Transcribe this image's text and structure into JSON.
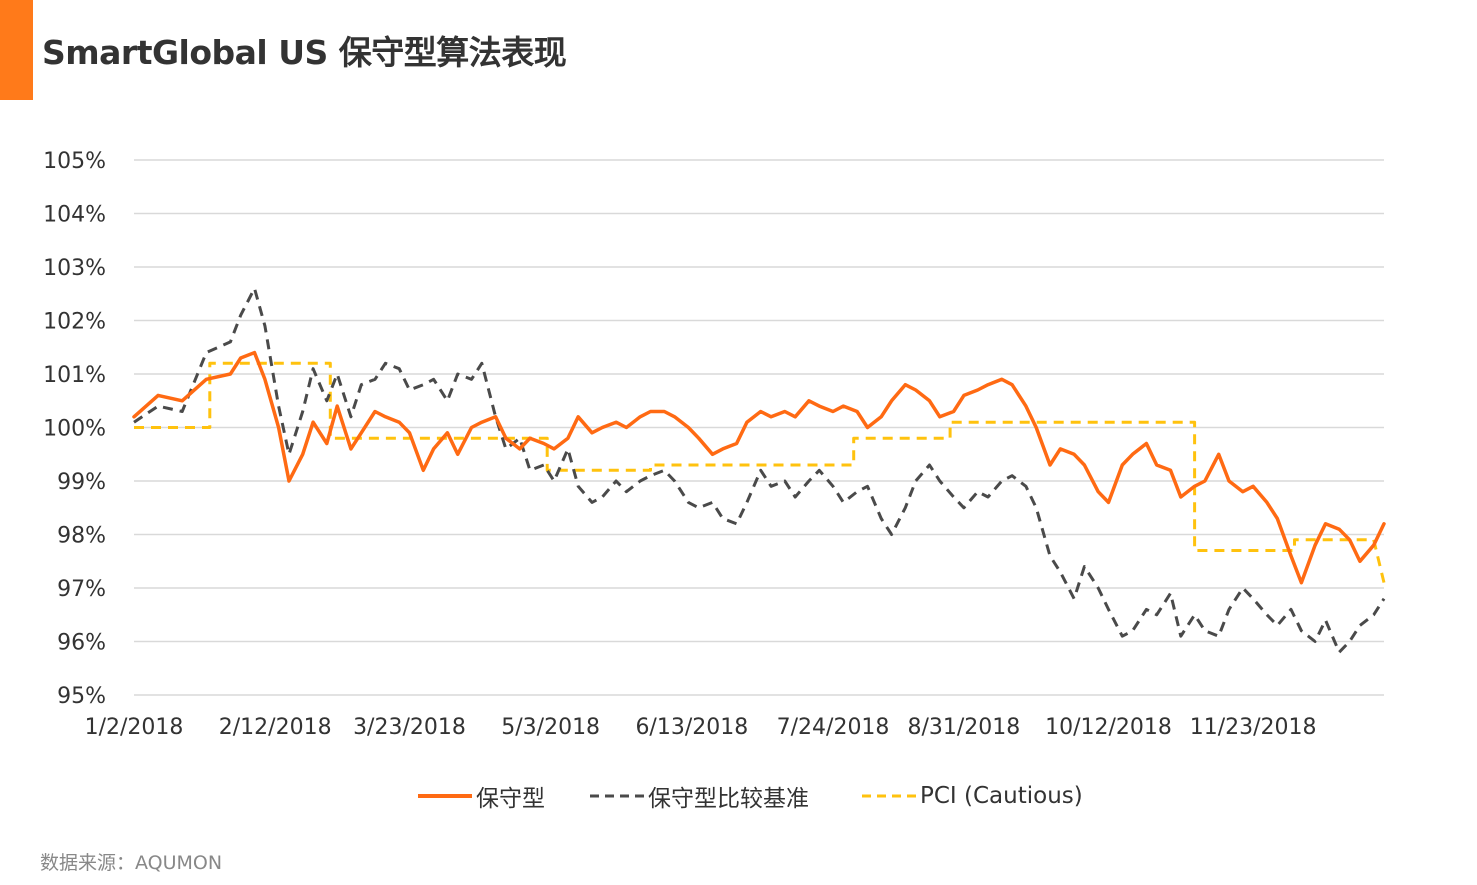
{
  "title": "SmartGlobal US 保守型算法表现",
  "source": "数据来源：AQUMON",
  "colors": {
    "accent": "#ff7a1a",
    "portfolio": "#ff6a13",
    "benchmark": "#4a4a4a",
    "pci": "#ffc20e",
    "grid": "#d9d9d9",
    "text": "#333333",
    "source_text": "#888888"
  },
  "chart_data": {
    "type": "line",
    "title": "",
    "xlabel": "",
    "ylabel": "",
    "ylim": [
      95,
      105
    ],
    "yticks": [
      "105%",
      "104%",
      "103%",
      "102%",
      "101%",
      "100%",
      "99%",
      "98%",
      "97%",
      "96%",
      "95%"
    ],
    "xticks": [
      "1/2/2018",
      "2/12/2018",
      "3/23/2018",
      "5/3/2018",
      "6/13/2018",
      "7/24/2018",
      "8/31/2018",
      "10/12/2018",
      "11/23/2018"
    ],
    "xrange": [
      "1/2/2018",
      "12/31/2018"
    ],
    "grid": true,
    "legend_position": "bottom",
    "series": [
      {
        "name": "保守型",
        "style": "solid",
        "color": "#ff6a13",
        "x": [
          "1/2/2018",
          "1/9/2018",
          "1/16/2018",
          "1/23/2018",
          "1/30/2018",
          "2/2/2018",
          "2/6/2018",
          "2/9/2018",
          "2/13/2018",
          "2/16/2018",
          "2/20/2018",
          "2/23/2018",
          "2/27/2018",
          "3/2/2018",
          "3/6/2018",
          "3/9/2018",
          "3/13/2018",
          "3/16/2018",
          "3/20/2018",
          "3/23/2018",
          "3/27/2018",
          "3/30/2018",
          "4/3/2018",
          "4/6/2018",
          "4/10/2018",
          "4/13/2018",
          "4/17/2018",
          "4/20/2018",
          "4/24/2018",
          "4/27/2018",
          "5/1/2018",
          "5/4/2018",
          "5/8/2018",
          "5/11/2018",
          "5/15/2018",
          "5/18/2018",
          "5/22/2018",
          "5/25/2018",
          "5/29/2018",
          "6/1/2018",
          "6/5/2018",
          "6/8/2018",
          "6/12/2018",
          "6/15/2018",
          "6/19/2018",
          "6/22/2018",
          "6/26/2018",
          "6/29/2018",
          "7/3/2018",
          "7/6/2018",
          "7/10/2018",
          "7/13/2018",
          "7/17/2018",
          "7/20/2018",
          "7/24/2018",
          "7/27/2018",
          "7/31/2018",
          "8/3/2018",
          "8/7/2018",
          "8/10/2018",
          "8/14/2018",
          "8/17/2018",
          "8/21/2018",
          "8/24/2018",
          "8/28/2018",
          "8/31/2018",
          "9/4/2018",
          "9/7/2018",
          "9/11/2018",
          "9/14/2018",
          "9/18/2018",
          "9/21/2018",
          "9/25/2018",
          "9/28/2018",
          "10/2/2018",
          "10/5/2018",
          "10/9/2018",
          "10/12/2018",
          "10/16/2018",
          "10/19/2018",
          "10/23/2018",
          "10/26/2018",
          "10/30/2018",
          "11/2/2018",
          "11/6/2018",
          "11/9/2018",
          "11/13/2018",
          "11/16/2018",
          "11/20/2018",
          "11/23/2018",
          "11/27/2018",
          "11/30/2018",
          "12/4/2018",
          "12/7/2018",
          "12/11/2018",
          "12/14/2018",
          "12/18/2018",
          "12/21/2018",
          "12/24/2018",
          "12/28/2018",
          "12/31/2018"
        ],
        "y": [
          100.2,
          100.6,
          100.5,
          100.9,
          101.0,
          101.3,
          101.4,
          100.9,
          100.0,
          99.0,
          99.5,
          100.1,
          99.7,
          100.4,
          99.6,
          99.9,
          100.3,
          100.2,
          100.1,
          99.9,
          99.2,
          99.6,
          99.9,
          99.5,
          100.0,
          100.1,
          100.2,
          99.8,
          99.6,
          99.8,
          99.7,
          99.6,
          99.8,
          100.2,
          99.9,
          100.0,
          100.1,
          100.0,
          100.2,
          100.3,
          100.3,
          100.2,
          100.0,
          99.8,
          99.5,
          99.6,
          99.7,
          100.1,
          100.3,
          100.2,
          100.3,
          100.2,
          100.5,
          100.4,
          100.3,
          100.4,
          100.3,
          100.0,
          100.2,
          100.5,
          100.8,
          100.7,
          100.5,
          100.2,
          100.3,
          100.6,
          100.7,
          100.8,
          100.9,
          100.8,
          100.4,
          100.0,
          99.3,
          99.6,
          99.5,
          99.3,
          98.8,
          98.6,
          99.3,
          99.5,
          99.7,
          99.3,
          99.2,
          98.7,
          98.9,
          99.0,
          99.5,
          99.0,
          98.8,
          98.9,
          98.6,
          98.3,
          97.6,
          97.1,
          97.8,
          98.2,
          98.1,
          97.9,
          97.5,
          97.8,
          98.2
        ]
      },
      {
        "name": "保守型比较基准",
        "style": "dashed",
        "color": "#4a4a4a",
        "x": [
          "1/2/2018",
          "1/9/2018",
          "1/16/2018",
          "1/23/2018",
          "1/30/2018",
          "2/2/2018",
          "2/6/2018",
          "2/9/2018",
          "2/13/2018",
          "2/16/2018",
          "2/20/2018",
          "2/23/2018",
          "2/27/2018",
          "3/2/2018",
          "3/6/2018",
          "3/9/2018",
          "3/13/2018",
          "3/16/2018",
          "3/20/2018",
          "3/23/2018",
          "3/27/2018",
          "3/30/2018",
          "4/3/2018",
          "4/6/2018",
          "4/10/2018",
          "4/13/2018",
          "4/17/2018",
          "4/20/2018",
          "4/24/2018",
          "4/27/2018",
          "5/1/2018",
          "5/4/2018",
          "5/8/2018",
          "5/11/2018",
          "5/15/2018",
          "5/18/2018",
          "5/22/2018",
          "5/25/2018",
          "5/29/2018",
          "6/1/2018",
          "6/5/2018",
          "6/8/2018",
          "6/12/2018",
          "6/15/2018",
          "6/19/2018",
          "6/22/2018",
          "6/26/2018",
          "6/29/2018",
          "7/3/2018",
          "7/6/2018",
          "7/10/2018",
          "7/13/2018",
          "7/17/2018",
          "7/20/2018",
          "7/24/2018",
          "7/27/2018",
          "7/31/2018",
          "8/3/2018",
          "8/7/2018",
          "8/10/2018",
          "8/14/2018",
          "8/17/2018",
          "8/21/2018",
          "8/24/2018",
          "8/28/2018",
          "8/31/2018",
          "9/4/2018",
          "9/7/2018",
          "9/11/2018",
          "9/14/2018",
          "9/18/2018",
          "9/21/2018",
          "9/25/2018",
          "9/28/2018",
          "10/2/2018",
          "10/5/2018",
          "10/9/2018",
          "10/12/2018",
          "10/16/2018",
          "10/19/2018",
          "10/23/2018",
          "10/26/2018",
          "10/30/2018",
          "11/2/2018",
          "11/6/2018",
          "11/9/2018",
          "11/13/2018",
          "11/16/2018",
          "11/20/2018",
          "11/23/2018",
          "11/27/2018",
          "11/30/2018",
          "12/4/2018",
          "12/7/2018",
          "12/11/2018",
          "12/14/2018",
          "12/18/2018",
          "12/21/2018",
          "12/24/2018",
          "12/28/2018",
          "12/31/2018"
        ],
        "y": [
          100.1,
          100.4,
          100.3,
          101.4,
          101.6,
          102.1,
          102.6,
          101.9,
          100.4,
          99.5,
          100.3,
          101.1,
          100.5,
          101.0,
          100.2,
          100.8,
          100.9,
          101.2,
          101.1,
          100.7,
          100.8,
          100.9,
          100.5,
          101.0,
          100.9,
          101.2,
          100.2,
          99.6,
          99.8,
          99.2,
          99.3,
          99.0,
          99.6,
          98.9,
          98.6,
          98.7,
          99.0,
          98.8,
          99.0,
          99.1,
          99.2,
          99.0,
          98.6,
          98.5,
          98.6,
          98.3,
          98.2,
          98.6,
          99.2,
          98.9,
          99.0,
          98.7,
          99.0,
          99.2,
          98.9,
          98.6,
          98.8,
          98.9,
          98.3,
          98.0,
          98.5,
          99.0,
          99.3,
          99.0,
          98.7,
          98.5,
          98.8,
          98.7,
          99.0,
          99.1,
          98.9,
          98.5,
          97.6,
          97.3,
          96.8,
          97.4,
          97.0,
          96.6,
          96.1,
          96.2,
          96.6,
          96.5,
          96.9,
          96.1,
          96.5,
          96.2,
          96.1,
          96.6,
          97.0,
          96.8,
          96.5,
          96.3,
          96.6,
          96.2,
          96.0,
          96.4,
          95.8,
          96.0,
          96.3,
          96.5,
          96.8
        ]
      },
      {
        "name": "PCI (Cautious)",
        "style": "dashed",
        "color": "#ffc20e",
        "x": [
          "1/2/2018",
          "1/24/2018",
          "1/24/2018",
          "2/28/2018",
          "2/28/2018",
          "5/2/2018",
          "5/2/2018",
          "6/1/2018",
          "6/1/2018",
          "7/30/2018",
          "7/30/2018",
          "8/27/2018",
          "8/27/2018",
          "11/6/2018",
          "11/6/2018",
          "12/5/2018",
          "12/5/2018",
          "12/28/2018",
          "12/31/2018"
        ],
        "y": [
          100.0,
          100.0,
          101.2,
          101.2,
          99.8,
          99.8,
          99.2,
          99.2,
          99.3,
          99.3,
          99.8,
          99.8,
          100.1,
          100.1,
          97.7,
          97.7,
          97.9,
          97.9,
          97.1
        ]
      }
    ]
  },
  "legend": [
    {
      "label": "保守型",
      "style": "solid",
      "color": "#ff6a13"
    },
    {
      "label": "保守型比较基准",
      "style": "dashed",
      "color": "#4a4a4a"
    },
    {
      "label": "PCI (Cautious)",
      "style": "dashed",
      "color": "#ffc20e"
    }
  ]
}
